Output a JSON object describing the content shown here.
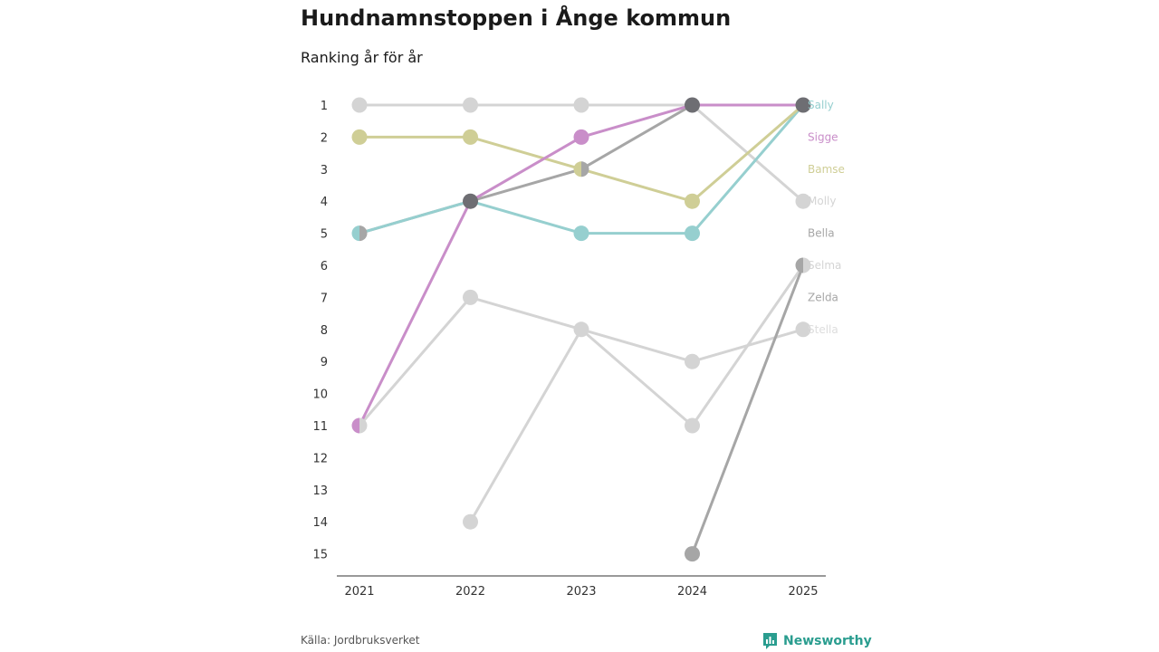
{
  "title": "Hundnamnstoppen i Ånge kommun",
  "subtitle": "Ranking år för år",
  "source": "Källa: Jordbruksverket",
  "brand": "Newsworthy",
  "brand_color": "#2a9d8f",
  "chart_data": {
    "type": "line",
    "title": "Hundnamnstoppen i Ånge kommun",
    "subtitle": "Ranking år för år",
    "xlabel": "",
    "ylabel": "",
    "x": [
      "2021",
      "2022",
      "2023",
      "2024",
      "2025"
    ],
    "y_ticks": [
      "1",
      "2",
      "3",
      "4",
      "5",
      "6",
      "7",
      "8",
      "9",
      "10",
      "11",
      "12",
      "13",
      "14",
      "15"
    ],
    "ylim": [
      1,
      15
    ],
    "y_inverted": true,
    "series": [
      {
        "name": "Sally",
        "color": "#96cfcf",
        "label_color": "#96cfcf",
        "values": [
          5,
          4,
          5,
          5,
          1
        ]
      },
      {
        "name": "Sigge",
        "color": "#c98ec9",
        "label_color": "#c98ec9",
        "values": [
          11,
          4,
          2,
          1,
          1
        ]
      },
      {
        "name": "Bamse",
        "color": "#cfce96",
        "label_color": "#cfce96",
        "values": [
          2,
          2,
          3,
          4,
          1
        ]
      },
      {
        "name": "Molly",
        "color": "#d4d4d4",
        "label_color": "#d4d4d4",
        "values": [
          1,
          1,
          1,
          1,
          4
        ]
      },
      {
        "name": "Bella",
        "color": "#a6a6a6",
        "label_color": "#a6a6a6",
        "values": [
          5,
          4,
          3,
          1,
          1
        ]
      },
      {
        "name": "Selma",
        "color": "#d4d4d4",
        "label_color": "#d4d4d4",
        "values": [
          null,
          14,
          8,
          11,
          6
        ]
      },
      {
        "name": "Zelda",
        "color": "#a6a6a6",
        "label_color": "#a6a6a6",
        "values": [
          null,
          null,
          null,
          15,
          6
        ]
      },
      {
        "name": "Stella",
        "color": "#d4d4d4",
        "label_color": "#dddddd",
        "values": [
          11,
          7,
          8,
          9,
          8
        ]
      }
    ],
    "overlap_color": "#6e6e73",
    "label_ranks": [
      1,
      2,
      3,
      4,
      5,
      6,
      7,
      8
    ]
  }
}
